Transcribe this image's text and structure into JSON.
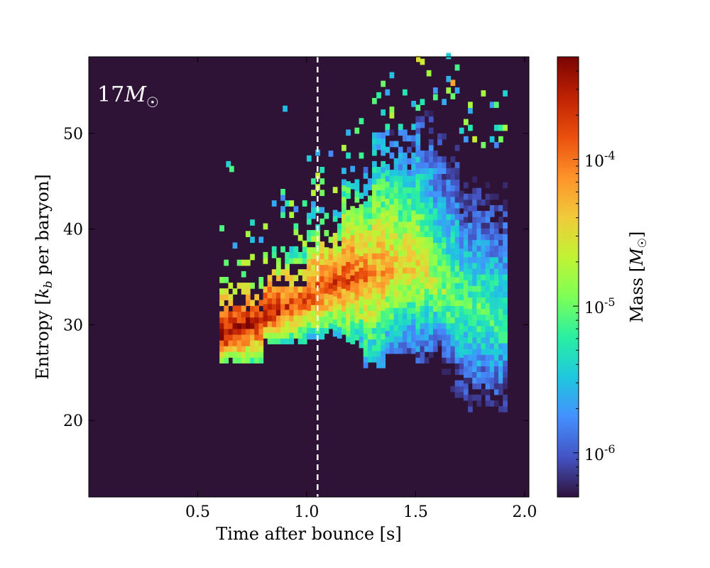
{
  "chart_data": {
    "type": "heatmap",
    "title": "",
    "annotation": "17M☉",
    "xlabel": "Time after bounce [s]",
    "ylabel": "Entropy [k_b per baryon]",
    "colorbar_label": "Mass [M☉]",
    "xlim": [
      0.0,
      2.02
    ],
    "ylim": [
      12,
      58
    ],
    "xticks": [
      "0.5",
      "1.0",
      "1.5",
      "2.0"
    ],
    "yticks": [
      "20",
      "30",
      "40",
      "50"
    ],
    "colorbar": {
      "scale": "log",
      "range": [
        5e-07,
        0.0005
      ],
      "ticks": [
        "10^-6",
        "10^-5",
        "10^-4"
      ]
    },
    "vline": {
      "x": 1.05,
      "style": "dashed",
      "color": "#ffffff"
    },
    "background_color": "#2e1337",
    "colormap": [
      "#30123b",
      "#4454c4",
      "#4490fe",
      "#1fc8de",
      "#29efa2",
      "#7dff56",
      "#c1f334",
      "#f1ca3a",
      "#fe922a",
      "#ea4f0d",
      "#be2102",
      "#7a0403"
    ],
    "ridge": {
      "x": [
        0.6,
        0.7,
        0.8,
        0.9,
        1.0,
        1.1,
        1.2,
        1.3,
        1.4,
        1.5,
        1.6,
        1.7,
        1.8,
        1.9
      ],
      "y_center": [
        28.5,
        29.5,
        30.5,
        31.5,
        32.5,
        34.0,
        34.5,
        35.0,
        35.5,
        36.0,
        33.0,
        32.0,
        31.0,
        30.0
      ],
      "log_mass_peak": [
        -3.35,
        -3.4,
        -3.5,
        -3.7,
        -3.8,
        -3.75,
        -3.85,
        -4.1,
        -4.3,
        -4.45,
        -4.8,
        -5.0,
        -5.05,
        -5.1
      ]
    }
  }
}
